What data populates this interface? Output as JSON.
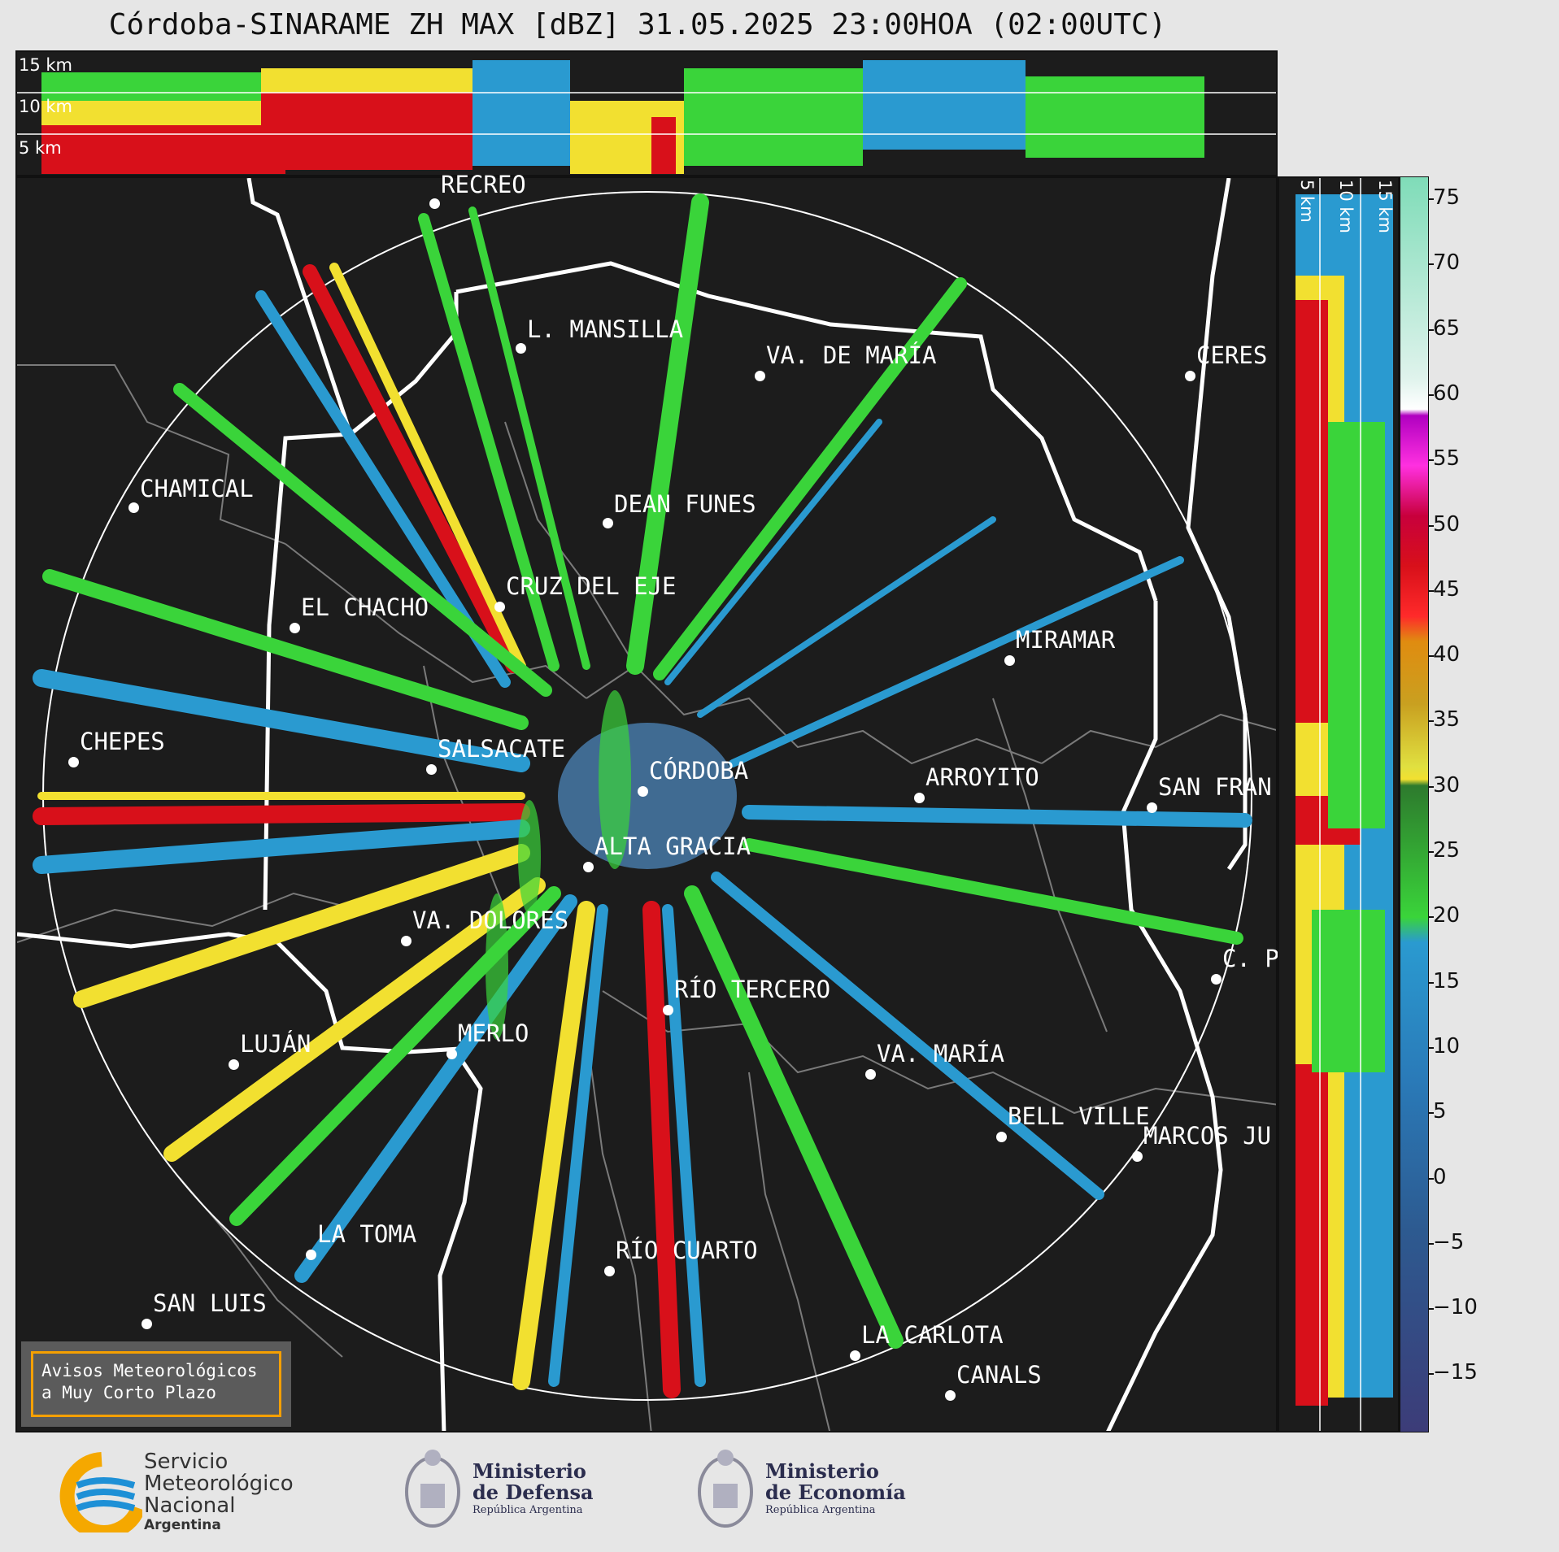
{
  "title": "Córdoba-SINARAME ZH MAX [dBZ] 31.05.2025 23:00HOA (02:00UTC)",
  "top_alt_labels": [
    "15 km",
    "10 km",
    "5 km"
  ],
  "side_alt_labels": [
    "5 km",
    "10 km",
    "15 km"
  ],
  "colorbar": {
    "ticks": [
      "75",
      "70",
      "65",
      "60",
      "55",
      "50",
      "45",
      "40",
      "35",
      "30",
      "25",
      "20",
      "15",
      "10",
      "5",
      "0",
      "−5",
      "−10",
      "−15"
    ]
  },
  "cities": [
    {
      "name": "RECREO"
    },
    {
      "name": "L. MANSILLA"
    },
    {
      "name": "VA. DE MARÍA"
    },
    {
      "name": "CERES"
    },
    {
      "name": "CHAMICAL"
    },
    {
      "name": "DEAN FUNES"
    },
    {
      "name": "CRUZ DEL EJE"
    },
    {
      "name": "EL CHACHO"
    },
    {
      "name": "MIRAMAR"
    },
    {
      "name": "CHEPES"
    },
    {
      "name": "SALSACATE"
    },
    {
      "name": "CÓRDOBA"
    },
    {
      "name": "ARROYITO"
    },
    {
      "name": "SAN FRAN"
    },
    {
      "name": "ALTA GRACIA"
    },
    {
      "name": "VA. DOLORES"
    },
    {
      "name": "C. P"
    },
    {
      "name": "RÍO TERCERO"
    },
    {
      "name": "MERLO"
    },
    {
      "name": "LUJÁN"
    },
    {
      "name": "VA. MARÍA"
    },
    {
      "name": "BELL VILLE"
    },
    {
      "name": "MARCOS JU"
    },
    {
      "name": "LA TOMA"
    },
    {
      "name": "RÍO CUARTO"
    },
    {
      "name": "SAN LUIS"
    },
    {
      "name": "LA CARLOTA"
    },
    {
      "name": "CANALS"
    }
  ],
  "avisos": {
    "line1": "Avisos Meteorológicos",
    "line2": "a Muy Corto Plazo"
  },
  "logos": {
    "smn": {
      "line1": "Servicio",
      "line2": "Meteorológico",
      "line3": "Nacional",
      "line4": "Argentina"
    },
    "defensa": {
      "line1": "Ministerio",
      "line2": "de Defensa",
      "line3": "República Argentina"
    },
    "economia": {
      "line1": "Ministerio",
      "line2": "de Economía",
      "line3": "República Argentina"
    }
  }
}
